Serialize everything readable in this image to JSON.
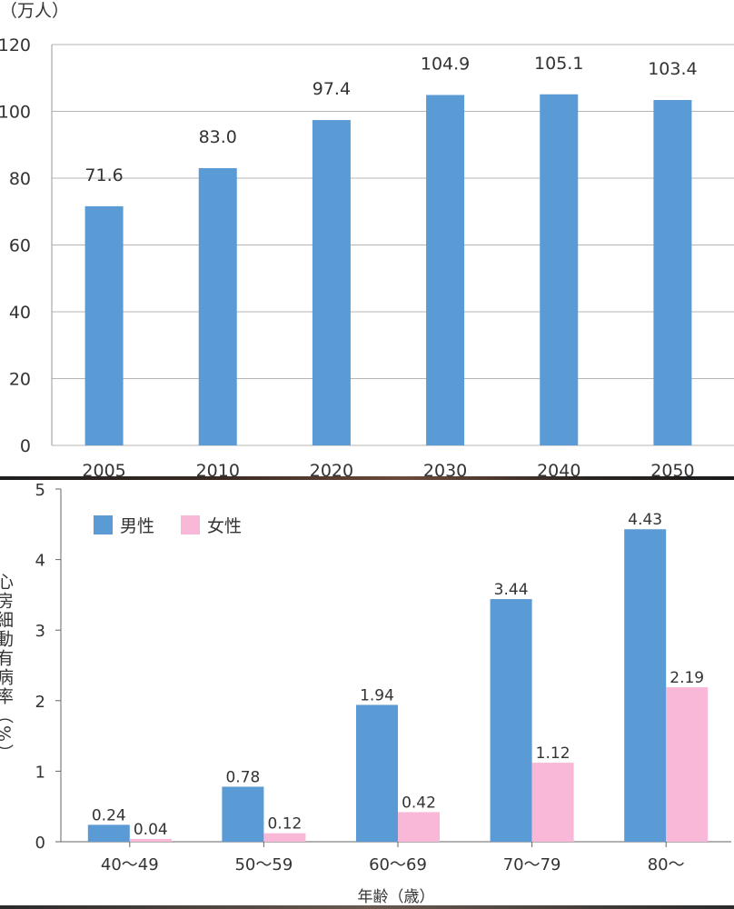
{
  "chart_data": [
    {
      "type": "bar",
      "title": "",
      "ylabel": "（万人）",
      "xlabel": "",
      "categories": [
        "2005",
        "2010",
        "2020",
        "2030",
        "2040",
        "2050"
      ],
      "values": [
        71.6,
        83.0,
        97.4,
        104.9,
        105.1,
        103.4
      ],
      "value_labels": [
        "71.6",
        "83.0",
        "97.4",
        "104.9",
        "105.1",
        "103.4"
      ],
      "ylim": [
        0,
        120
      ],
      "yticks": [
        "0",
        "20",
        "40",
        "60",
        "80",
        "100",
        "120"
      ],
      "grid": true,
      "colors": [
        "#5b9bd5"
      ]
    },
    {
      "type": "bar",
      "title": "",
      "ylabel": "心房細動有病率（%）",
      "xlabel": "年齢（歳）",
      "categories": [
        "40〜49",
        "50〜59",
        "60〜69",
        "70〜79",
        "80〜"
      ],
      "series": [
        {
          "name": "男性",
          "color": "#5b9bd5",
          "values": [
            0.24,
            0.78,
            1.94,
            3.44,
            4.43
          ],
          "value_labels": [
            "0.24",
            "0.78",
            "1.94",
            "3.44",
            "4.43"
          ]
        },
        {
          "name": "女性",
          "color": "#f9b8d8",
          "values": [
            0.04,
            0.12,
            0.42,
            1.12,
            2.19
          ],
          "value_labels": [
            "0.04",
            "0.12",
            "0.42",
            "1.12",
            "2.19"
          ]
        }
      ],
      "ylim": [
        0,
        5
      ],
      "yticks": [
        "0",
        "1",
        "2",
        "3",
        "4",
        "5"
      ],
      "grid": false,
      "legend": "top-left"
    }
  ]
}
